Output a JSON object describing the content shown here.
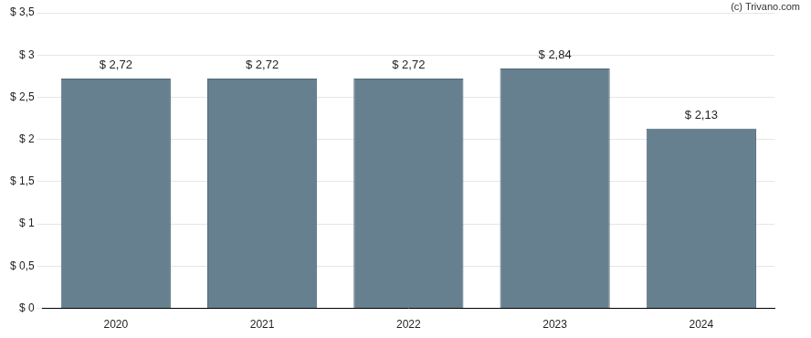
{
  "chart_data": {
    "type": "bar",
    "annotations": [
      "(c) Trivano.com"
    ],
    "categories": [
      "2020",
      "2021",
      "2022",
      "2023",
      "2024"
    ],
    "values": [
      2.72,
      2.72,
      2.72,
      2.84,
      2.13
    ],
    "value_labels": [
      "$ 2,72",
      "$ 2,72",
      "$ 2,72",
      "$ 2,84",
      "$ 2,13"
    ],
    "data_labels": true,
    "color": "#66808f",
    "ylim": [
      0,
      3.5
    ],
    "yticks": [
      {
        "value": 0,
        "label": "$ 0"
      },
      {
        "value": 0.5,
        "label": "$ 0,5"
      },
      {
        "value": 1,
        "label": "$ 1"
      },
      {
        "value": 1.5,
        "label": "$ 1,5"
      },
      {
        "value": 2,
        "label": "$ 2"
      },
      {
        "value": 2.5,
        "label": "$ 2,5"
      },
      {
        "value": 3,
        "label": "$ 3"
      },
      {
        "value": 3.5,
        "label": "$ 3,5"
      }
    ],
    "grid": true
  }
}
